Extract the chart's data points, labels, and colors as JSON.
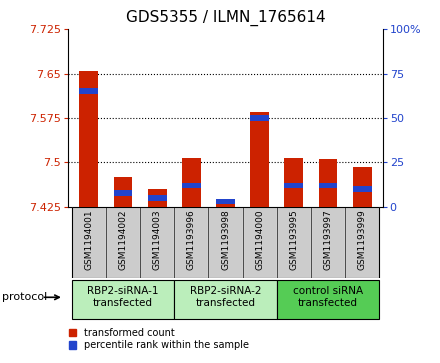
{
  "title": "GDS5355 / ILMN_1765614",
  "samples": [
    "GSM1194001",
    "GSM1194002",
    "GSM1194003",
    "GSM1193996",
    "GSM1193998",
    "GSM1194000",
    "GSM1193995",
    "GSM1193997",
    "GSM1193999"
  ],
  "red_values": [
    7.655,
    7.475,
    7.455,
    7.508,
    7.435,
    7.585,
    7.508,
    7.505,
    7.493
  ],
  "blue_pct": [
    65,
    8,
    5,
    12,
    3,
    50,
    12,
    12,
    10
  ],
  "y_min": 7.425,
  "y_max": 7.725,
  "y_ticks": [
    7.425,
    7.5,
    7.575,
    7.65,
    7.725
  ],
  "right_y_ticks": [
    0,
    25,
    50,
    75,
    100
  ],
  "groups": [
    {
      "label": "RBP2-siRNA-1\ntransfected",
      "start": 0,
      "end": 3,
      "color": "#bbeebb"
    },
    {
      "label": "RBP2-siRNA-2\ntransfected",
      "start": 3,
      "end": 6,
      "color": "#bbeebb"
    },
    {
      "label": "control siRNA\ntransfected",
      "start": 6,
      "end": 9,
      "color": "#55cc55"
    }
  ],
  "legend_red": "transformed count",
  "legend_blue": "percentile rank within the sample",
  "protocol_label": "protocol",
  "bar_width": 0.55,
  "red_color": "#cc2200",
  "blue_color": "#2244cc",
  "sample_bg": "#cccccc",
  "title_fontsize": 11,
  "axis_fontsize": 8,
  "sample_fontsize": 6.5,
  "group_fontsize": 7.5,
  "legend_fontsize": 7,
  "protocol_fontsize": 8
}
